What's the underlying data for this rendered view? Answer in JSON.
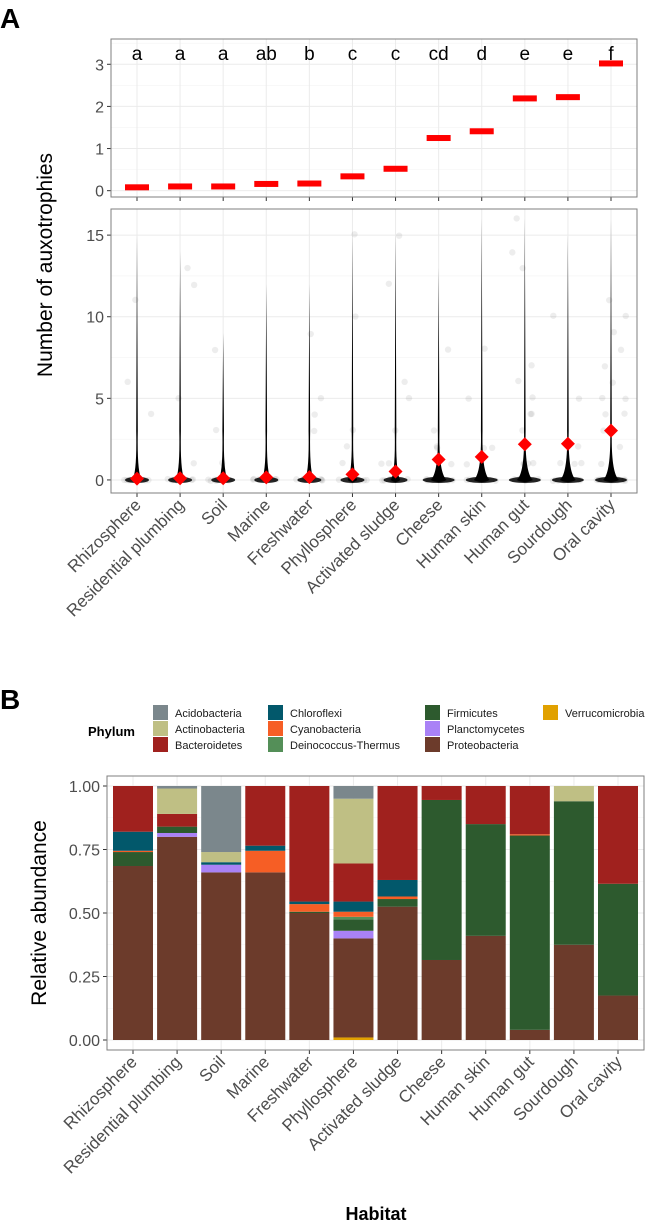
{
  "panel_labels": {
    "a": "A",
    "b": "B"
  },
  "colors": {
    "mean": "#ff0000",
    "point": "#000000"
  },
  "chart_data": [
    {
      "type": "scatter",
      "title": "",
      "ylabel": "Number of auxotrophies",
      "xlabel": "",
      "categories": [
        "Rhizosphere",
        "Residential plumbing",
        "Soil",
        "Marine",
        "Freshwater",
        "Phyllosphere",
        "Activated sludge",
        "Cheese",
        "Human skin",
        "Human gut",
        "Sourdough",
        "Oral cavity"
      ],
      "top_panel": {
        "ylim": [
          -0.15,
          3.6
        ],
        "yticks": [
          0,
          1,
          2,
          3
        ],
        "mean_values": [
          0.08,
          0.1,
          0.1,
          0.16,
          0.17,
          0.34,
          0.52,
          1.25,
          1.41,
          2.19,
          2.22,
          3.02
        ],
        "significance_letters": [
          "a",
          "a",
          "a",
          "ab",
          "b",
          "c",
          "c",
          "cd",
          "d",
          "e",
          "e",
          "f"
        ]
      },
      "bottom_panel": {
        "type": "violin+jitter",
        "ylim": [
          -0.8,
          16.6
        ],
        "yticks": [
          0,
          5,
          10,
          15
        ],
        "max_values": [
          15,
          14,
          9,
          12,
          12,
          15,
          15,
          13,
          16,
          16,
          15,
          16
        ],
        "mean_values": [
          0.08,
          0.1,
          0.1,
          0.16,
          0.17,
          0.34,
          0.52,
          1.25,
          1.41,
          2.19,
          2.22,
          3.02
        ]
      },
      "grid": true
    },
    {
      "type": "bar",
      "stacked": true,
      "xlabel": "Habitat",
      "ylabel": "Relative abundance",
      "ylim": [
        0,
        1
      ],
      "yticks": [
        "0.00",
        "0.25",
        "0.50",
        "0.75",
        "1.00"
      ],
      "legend_title": "Phylum",
      "legend_position": "top",
      "categories": [
        "Rhizosphere",
        "Residential plumbing",
        "Soil",
        "Marine",
        "Freshwater",
        "Phyllosphere",
        "Activated sludge",
        "Cheese",
        "Human skin",
        "Human gut",
        "Sourdough",
        "Oral cavity"
      ],
      "series": [
        {
          "name": "Verrucomicrobia",
          "color": "#e1a100",
          "values": [
            0,
            0,
            0,
            0,
            0,
            0.01,
            0,
            0,
            0,
            0,
            0,
            0
          ]
        },
        {
          "name": "Proteobacteria",
          "color": "#6c3b2b",
          "values": [
            0.685,
            0.8,
            0.66,
            0.66,
            0.5,
            0.39,
            0.525,
            0.315,
            0.41,
            0.04,
            0.375,
            0.175
          ]
        },
        {
          "name": "Planctomycetes",
          "color": "#a982f6",
          "values": [
            0,
            0.015,
            0.03,
            0,
            0,
            0.03,
            0,
            0,
            0,
            0,
            0,
            0
          ]
        },
        {
          "name": "Firmicutes",
          "color": "#2d5a2e",
          "values": [
            0.055,
            0.025,
            0,
            0,
            0.005,
            0.045,
            0.03,
            0.63,
            0.44,
            0.765,
            0.565,
            0.44
          ]
        },
        {
          "name": "Deinococcus-Thermus",
          "color": "#548f58",
          "values": [
            0,
            0,
            0,
            0,
            0,
            0.01,
            0,
            0,
            0,
            0,
            0,
            0
          ]
        },
        {
          "name": "Cyanobacteria",
          "color": "#f65e25",
          "values": [
            0.005,
            0,
            0,
            0.085,
            0.03,
            0.02,
            0.01,
            0,
            0,
            0.005,
            0,
            0
          ]
        },
        {
          "name": "Chloroflexi",
          "color": "#02586b",
          "values": [
            0.075,
            0,
            0.01,
            0.02,
            0.01,
            0.04,
            0.065,
            0,
            0,
            0,
            0,
            0
          ]
        },
        {
          "name": "Bacteroidetes",
          "color": "#a0211e",
          "values": [
            0.18,
            0.05,
            0,
            0.235,
            0.455,
            0.15,
            0.37,
            0.055,
            0.15,
            0.19,
            0,
            0.385
          ]
        },
        {
          "name": "Actinobacteria",
          "color": "#bfbf84",
          "values": [
            0,
            0.1,
            0.04,
            0,
            0,
            0.255,
            0,
            0,
            0,
            0,
            0.06,
            0
          ]
        },
        {
          "name": "Acidobacteria",
          "color": "#7b878c",
          "values": [
            0,
            0.01,
            0.26,
            0,
            0,
            0.05,
            0,
            0,
            0,
            0,
            0,
            0
          ]
        }
      ],
      "legend_order": [
        "Acidobacteria",
        "Actinobacteria",
        "Bacteroidetes",
        "Chloroflexi",
        "Cyanobacteria",
        "Deinococcus-Thermus",
        "Firmicutes",
        "Planctomycetes",
        "Proteobacteria",
        "Verrucomicrobia"
      ]
    }
  ]
}
